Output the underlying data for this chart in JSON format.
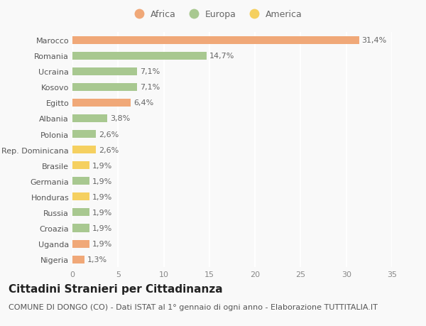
{
  "categories": [
    "Nigeria",
    "Uganda",
    "Croazia",
    "Russia",
    "Honduras",
    "Germania",
    "Brasile",
    "Rep. Dominicana",
    "Polonia",
    "Albania",
    "Egitto",
    "Kosovo",
    "Ucraina",
    "Romania",
    "Marocco"
  ],
  "values": [
    1.3,
    1.9,
    1.9,
    1.9,
    1.9,
    1.9,
    1.9,
    2.6,
    2.6,
    3.8,
    6.4,
    7.1,
    7.1,
    14.7,
    31.4
  ],
  "labels": [
    "1,3%",
    "1,9%",
    "1,9%",
    "1,9%",
    "1,9%",
    "1,9%",
    "1,9%",
    "2,6%",
    "2,6%",
    "3,8%",
    "6,4%",
    "7,1%",
    "7,1%",
    "14,7%",
    "31,4%"
  ],
  "colors": [
    "#f0a878",
    "#f0a878",
    "#a8c890",
    "#a8c890",
    "#f5d060",
    "#a8c890",
    "#f5d060",
    "#f5d060",
    "#a8c890",
    "#a8c890",
    "#f0a878",
    "#a8c890",
    "#a8c890",
    "#a8c890",
    "#f0a878"
  ],
  "legend_labels": [
    "Africa",
    "Europa",
    "America"
  ],
  "legend_colors": [
    "#f0a878",
    "#a8c890",
    "#f5d060"
  ],
  "title": "Cittadini Stranieri per Cittadinanza",
  "subtitle": "COMUNE DI DONGO (CO) - Dati ISTAT al 1° gennaio di ogni anno - Elaborazione TUTTITALIA.IT",
  "xlim": [
    0,
    35
  ],
  "xticks": [
    0,
    5,
    10,
    15,
    20,
    25,
    30,
    35
  ],
  "background_color": "#f9f9f9",
  "bar_height": 0.5,
  "title_fontsize": 11,
  "subtitle_fontsize": 8,
  "label_fontsize": 8,
  "tick_fontsize": 8,
  "legend_fontsize": 9
}
